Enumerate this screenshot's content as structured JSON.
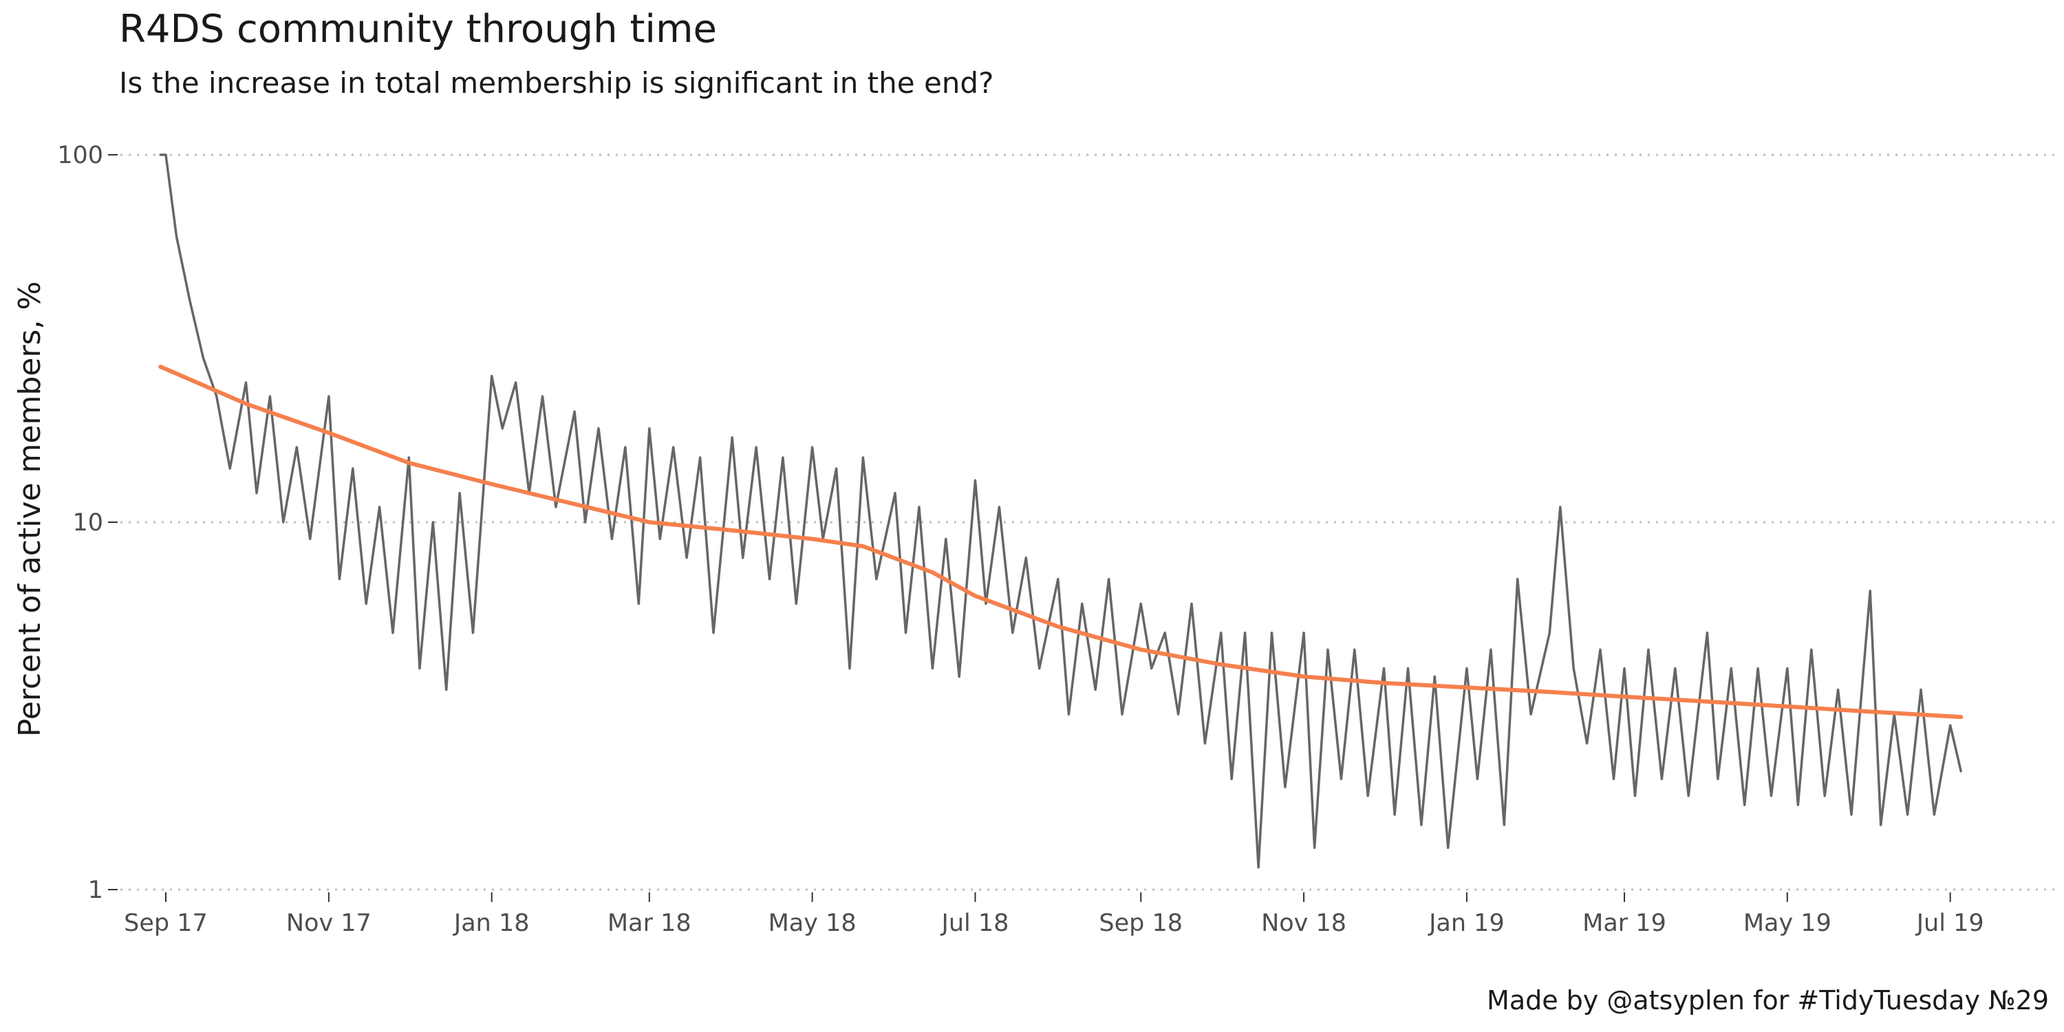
{
  "chart_data": {
    "type": "line",
    "title": "R4DS community through time",
    "subtitle": "Is the increase in total membership is significant in the end?",
    "caption": "Made by @atsyplen for #TidyTuesday №29",
    "xlabel": "",
    "ylabel": "Percent of active members, %",
    "y_scale": "log10",
    "ylim": [
      1,
      100
    ],
    "y_ticks": [
      1,
      10,
      100
    ],
    "y_tick_labels": [
      "1",
      "10",
      "100"
    ],
    "xlim": [
      "2017-08-15",
      "2019-08-10"
    ],
    "x_ticks": [
      "2017-09-01",
      "2017-11-01",
      "2018-01-01",
      "2018-03-01",
      "2018-05-01",
      "2018-07-01",
      "2018-09-01",
      "2018-11-01",
      "2019-01-01",
      "2019-03-01",
      "2019-05-01",
      "2019-07-01"
    ],
    "x_tick_labels": [
      "Sep 17",
      "Nov 17",
      "Jan 18",
      "Mar 18",
      "May 18",
      "Jul 18",
      "Sep 18",
      "Nov 18",
      "Jan 19",
      "Mar 19",
      "May 19",
      "Jul 19"
    ],
    "grid": "horizontal dotted at major y ticks",
    "legend": "none",
    "colors": {
      "series": "#666666",
      "smooth": "#f5804d",
      "grid": "#bdbdbd"
    },
    "series": [
      {
        "style": "raw",
        "x": [
          "2017-08-30",
          "2017-09-01",
          "2017-09-05",
          "2017-09-10",
          "2017-09-15",
          "2017-09-20",
          "2017-09-25",
          "2017-10-01",
          "2017-10-05",
          "2017-10-10",
          "2017-10-15",
          "2017-10-20",
          "2017-10-25",
          "2017-11-01",
          "2017-11-05",
          "2017-11-10",
          "2017-11-15",
          "2017-11-20",
          "2017-11-25",
          "2017-12-01",
          "2017-12-05",
          "2017-12-10",
          "2017-12-15",
          "2017-12-20",
          "2017-12-25",
          "2018-01-01",
          "2018-01-05",
          "2018-01-10",
          "2018-01-15",
          "2018-01-20",
          "2018-01-25",
          "2018-02-01",
          "2018-02-05",
          "2018-02-10",
          "2018-02-15",
          "2018-02-20",
          "2018-02-25",
          "2018-03-01",
          "2018-03-05",
          "2018-03-10",
          "2018-03-15",
          "2018-03-20",
          "2018-03-25",
          "2018-04-01",
          "2018-04-05",
          "2018-04-10",
          "2018-04-15",
          "2018-04-20",
          "2018-04-25",
          "2018-05-01",
          "2018-05-05",
          "2018-05-10",
          "2018-05-15",
          "2018-05-20",
          "2018-05-25",
          "2018-06-01",
          "2018-06-05",
          "2018-06-10",
          "2018-06-15",
          "2018-06-20",
          "2018-06-25",
          "2018-07-01",
          "2018-07-05",
          "2018-07-10",
          "2018-07-15",
          "2018-07-20",
          "2018-07-25",
          "2018-08-01",
          "2018-08-05",
          "2018-08-10",
          "2018-08-15",
          "2018-08-20",
          "2018-08-25",
          "2018-09-01",
          "2018-09-05",
          "2018-09-10",
          "2018-09-15",
          "2018-09-20",
          "2018-09-25",
          "2018-10-01",
          "2018-10-05",
          "2018-10-10",
          "2018-10-15",
          "2018-10-20",
          "2018-10-25",
          "2018-11-01",
          "2018-11-05",
          "2018-11-10",
          "2018-11-15",
          "2018-11-20",
          "2018-11-25",
          "2018-12-01",
          "2018-12-05",
          "2018-12-10",
          "2018-12-15",
          "2018-12-20",
          "2018-12-25",
          "2019-01-01",
          "2019-01-05",
          "2019-01-10",
          "2019-01-15",
          "2019-01-20",
          "2019-01-25",
          "2019-02-01",
          "2019-02-05",
          "2019-02-10",
          "2019-02-15",
          "2019-02-20",
          "2019-02-25",
          "2019-03-01",
          "2019-03-05",
          "2019-03-10",
          "2019-03-15",
          "2019-03-20",
          "2019-03-25",
          "2019-04-01",
          "2019-04-05",
          "2019-04-10",
          "2019-04-15",
          "2019-04-20",
          "2019-04-25",
          "2019-05-01",
          "2019-05-05",
          "2019-05-10",
          "2019-05-15",
          "2019-05-20",
          "2019-05-25",
          "2019-06-01",
          "2019-06-05",
          "2019-06-10",
          "2019-06-15",
          "2019-06-20",
          "2019-06-25",
          "2019-07-01",
          "2019-07-05"
        ],
        "y": [
          100,
          100,
          60,
          40,
          28,
          22,
          14,
          24,
          12,
          22,
          10,
          16,
          9,
          22,
          7,
          14,
          6,
          11,
          5,
          15,
          4,
          10,
          3.5,
          12,
          5,
          25,
          18,
          24,
          12,
          22,
          11,
          20,
          10,
          18,
          9,
          16,
          6,
          18,
          9,
          16,
          8,
          15,
          5,
          17,
          8,
          16,
          7,
          15,
          6,
          16,
          9,
          14,
          4,
          15,
          7,
          12,
          5,
          11,
          4,
          9,
          3.8,
          13,
          6,
          11,
          5,
          8,
          4,
          7,
          3,
          6,
          3.5,
          7,
          3,
          6,
          4,
          5,
          3,
          6,
          2.5,
          5,
          2,
          5,
          1.15,
          5,
          1.9,
          5,
          1.3,
          4.5,
          2,
          4.5,
          1.8,
          4,
          1.6,
          4,
          1.5,
          3.8,
          1.3,
          4,
          2,
          4.5,
          1.5,
          7,
          3,
          5,
          11,
          4,
          2.5,
          4.5,
          2,
          4,
          1.8,
          4.5,
          2,
          4,
          1.8,
          5,
          2,
          4,
          1.7,
          4,
          1.8,
          4,
          1.7,
          4.5,
          1.8,
          3.5,
          1.6,
          6.5,
          1.5,
          3,
          1.6,
          3.5,
          1.6,
          2.8,
          2.1
        ]
      },
      {
        "style": "smooth",
        "x": [
          "2017-08-30",
          "2017-10-01",
          "2017-11-01",
          "2017-12-01",
          "2018-01-01",
          "2018-02-01",
          "2018-03-01",
          "2018-04-01",
          "2018-05-01",
          "2018-05-20",
          "2018-06-15",
          "2018-07-01",
          "2018-08-01",
          "2018-09-01",
          "2018-10-01",
          "2018-11-01",
          "2018-12-01",
          "2019-01-01",
          "2019-02-01",
          "2019-03-01",
          "2019-04-01",
          "2019-05-01",
          "2019-06-01",
          "2019-07-05"
        ],
        "y": [
          26.5,
          21,
          17.5,
          14.5,
          12.7,
          11.2,
          10.0,
          9.5,
          9.0,
          8.6,
          7.3,
          6.3,
          5.2,
          4.5,
          4.1,
          3.8,
          3.65,
          3.55,
          3.45,
          3.35,
          3.25,
          3.15,
          3.05,
          2.95
        ]
      }
    ]
  }
}
